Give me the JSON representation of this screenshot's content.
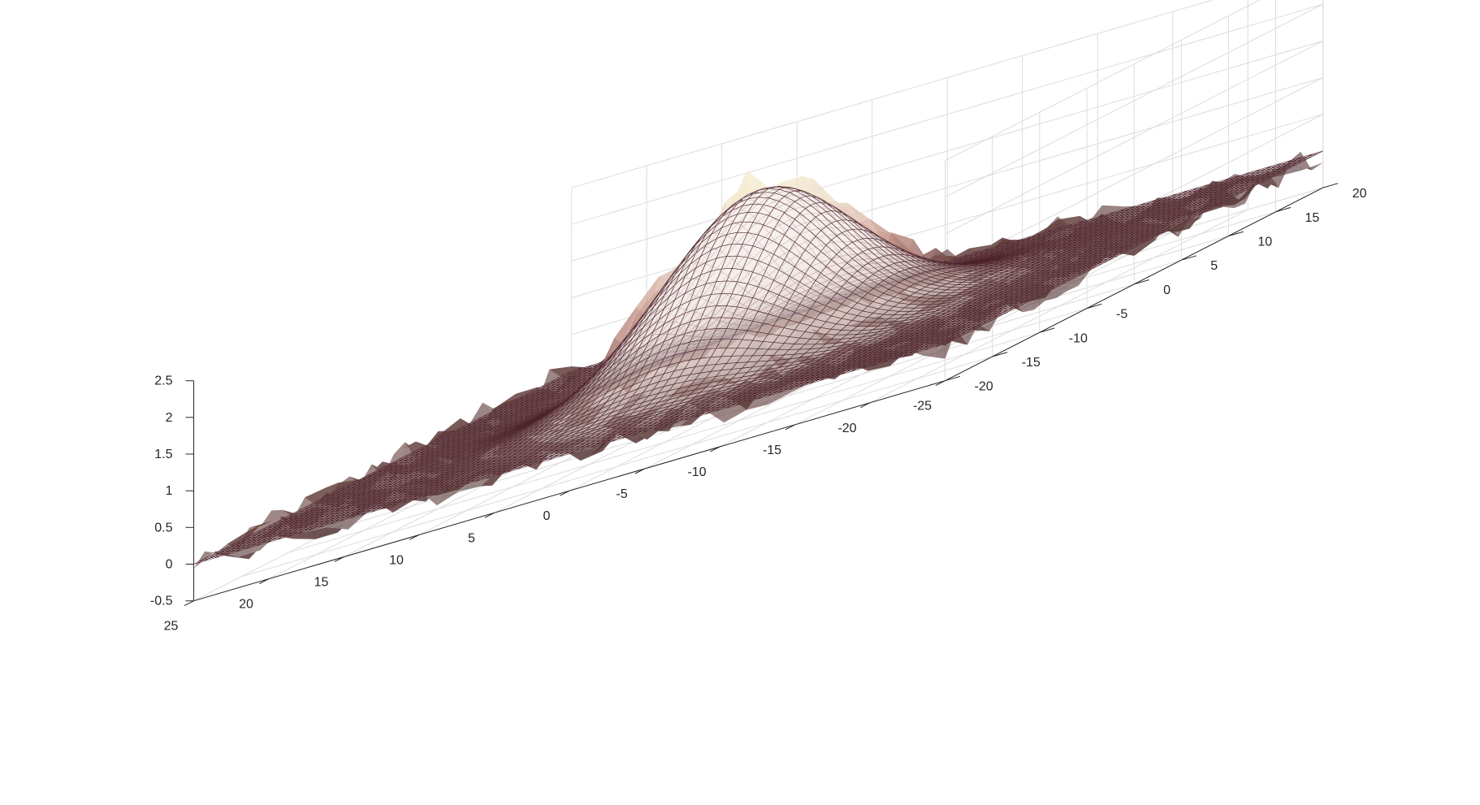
{
  "chart_data": {
    "type": "surface",
    "title": "",
    "xlabel": "",
    "ylabel": "",
    "zlabel": "",
    "grid": true,
    "xlim": [
      -25,
      25
    ],
    "ylim": [
      -20,
      20
    ],
    "zlim": [
      -0.5,
      2.5
    ],
    "x_ticks": [
      25,
      20,
      15,
      10,
      5,
      0,
      -5,
      -10,
      -15,
      -20,
      -25
    ],
    "x_tick_labels": [
      "25",
      "20",
      "15",
      "10",
      "5",
      "0",
      "-5",
      "-10",
      "-15",
      "-20",
      "-25"
    ],
    "y_ticks": [
      -20,
      -15,
      -10,
      -5,
      0,
      5,
      10,
      15,
      20
    ],
    "y_tick_labels": [
      "-20",
      "-15",
      "-10",
      "-5",
      "0",
      "5",
      "10",
      "15",
      "20"
    ],
    "z_ticks": [
      -0.5,
      0,
      0.5,
      1,
      1.5,
      2,
      2.5
    ],
    "z_tick_labels": [
      "-0.5",
      "0",
      "0.5",
      "1",
      "1.5",
      "2",
      "2.5"
    ],
    "series": [
      {
        "kind": "smooth_gaussian_mesh",
        "peak": 2.28,
        "center": [
          0,
          0
        ],
        "sigma": 5.5,
        "mesh_color": "#4a2028",
        "face_color": "#f7f2ef"
      },
      {
        "kind": "noisy_surface",
        "peak": 2.35,
        "sigma": 5.5,
        "noise_amplitude": 0.2,
        "colormap": [
          "#3e2628",
          "#6e4744",
          "#9e6e68",
          "#c79a90",
          "#e3c7bb",
          "#f1e6cf",
          "#f5efd0"
        ]
      }
    ]
  }
}
